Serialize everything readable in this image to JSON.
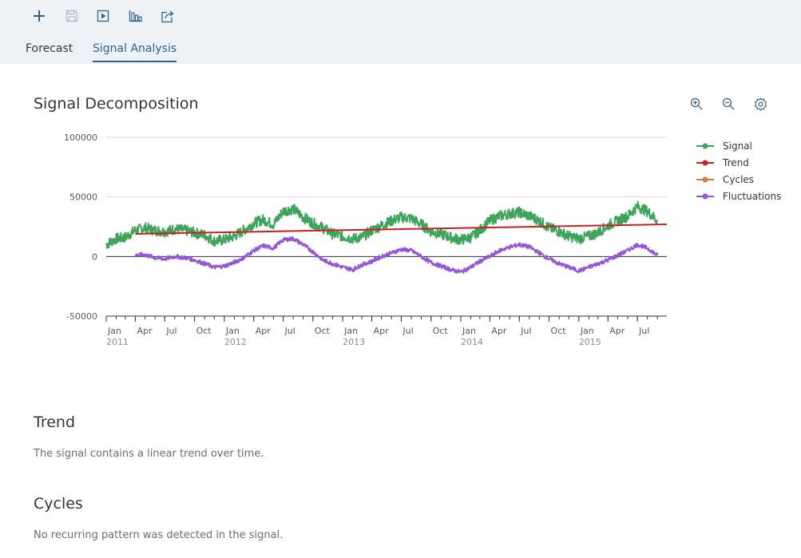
{
  "toolbar": {
    "buttons": [
      {
        "icon": "add-icon"
      },
      {
        "icon": "save-icon"
      },
      {
        "icon": "play-icon"
      },
      {
        "icon": "chart-icon"
      },
      {
        "icon": "share-icon"
      }
    ]
  },
  "tabs": [
    {
      "label": "Forecast",
      "active": false
    },
    {
      "label": "Signal Analysis",
      "active": true
    }
  ],
  "decomposition": {
    "title": "Signal Decomposition",
    "tools": [
      "zoom-in-icon",
      "zoom-out-icon",
      "settings-icon"
    ]
  },
  "chart_data": {
    "type": "line",
    "title": "Signal Decomposition",
    "xlabel": "",
    "ylabel": "",
    "ylim": [
      -50000,
      100000
    ],
    "y_ticks": [
      "100000",
      "50000",
      "0",
      "-50000"
    ],
    "x_range": [
      "2011-01-01",
      "2015-09-30"
    ],
    "x_ticks": [
      {
        "date": "2011-01-01",
        "label": "Jan",
        "year": "2011"
      },
      {
        "date": "2011-04-01",
        "label": "Apr"
      },
      {
        "date": "2011-07-01",
        "label": "Jul"
      },
      {
        "date": "2011-10-01",
        "label": "Oct"
      },
      {
        "date": "2012-01-01",
        "label": "Jan",
        "year": "2012"
      },
      {
        "date": "2012-04-01",
        "label": "Apr"
      },
      {
        "date": "2012-07-01",
        "label": "Jul"
      },
      {
        "date": "2012-10-01",
        "label": "Oct"
      },
      {
        "date": "2013-01-01",
        "label": "Jan",
        "year": "2013"
      },
      {
        "date": "2013-04-01",
        "label": "Apr"
      },
      {
        "date": "2013-07-01",
        "label": "Jul"
      },
      {
        "date": "2013-10-01",
        "label": "Oct"
      },
      {
        "date": "2014-01-01",
        "label": "Jan",
        "year": "2014"
      },
      {
        "date": "2014-04-01",
        "label": "Apr"
      },
      {
        "date": "2014-07-01",
        "label": "Jul"
      },
      {
        "date": "2014-10-01",
        "label": "Oct"
      },
      {
        "date": "2015-01-01",
        "label": "Jan",
        "year": "2015"
      },
      {
        "date": "2015-04-01",
        "label": "Apr"
      },
      {
        "date": "2015-07-01",
        "label": "Jul"
      }
    ],
    "legend_position": "right",
    "grid": true,
    "series": [
      {
        "name": "Signal",
        "color": "#3fa45b",
        "points": [
          [
            "2011-01-01",
            10000
          ],
          [
            "2011-02-01",
            15000
          ],
          [
            "2011-03-01",
            16000
          ],
          [
            "2011-04-01",
            22000
          ],
          [
            "2011-05-01",
            24000
          ],
          [
            "2011-06-01",
            22000
          ],
          [
            "2011-07-01",
            21000
          ],
          [
            "2011-08-01",
            23000
          ],
          [
            "2011-09-01",
            22000
          ],
          [
            "2011-10-01",
            20000
          ],
          [
            "2011-11-01",
            18000
          ],
          [
            "2011-12-01",
            13000
          ],
          [
            "2012-01-01",
            14000
          ],
          [
            "2012-02-01",
            17000
          ],
          [
            "2012-03-01",
            22000
          ],
          [
            "2012-04-01",
            28000
          ],
          [
            "2012-05-01",
            31000
          ],
          [
            "2012-06-01",
            27000
          ],
          [
            "2012-07-01",
            38000
          ],
          [
            "2012-08-01",
            40000
          ],
          [
            "2012-09-01",
            33000
          ],
          [
            "2012-10-01",
            28000
          ],
          [
            "2012-11-01",
            24000
          ],
          [
            "2012-12-01",
            19000
          ],
          [
            "2013-01-01",
            17000
          ],
          [
            "2013-02-01",
            15000
          ],
          [
            "2013-03-01",
            16000
          ],
          [
            "2013-04-01",
            22000
          ],
          [
            "2013-05-01",
            26000
          ],
          [
            "2013-06-01",
            30000
          ],
          [
            "2013-07-01",
            33000
          ],
          [
            "2013-08-01",
            32000
          ],
          [
            "2013-09-01",
            27000
          ],
          [
            "2013-10-01",
            21000
          ],
          [
            "2013-11-01",
            19000
          ],
          [
            "2013-12-01",
            16000
          ],
          [
            "2014-01-01",
            14000
          ],
          [
            "2014-02-01",
            16000
          ],
          [
            "2014-03-01",
            22000
          ],
          [
            "2014-04-01",
            30000
          ],
          [
            "2014-05-01",
            34000
          ],
          [
            "2014-06-01",
            36000
          ],
          [
            "2014-07-01",
            37000
          ],
          [
            "2014-08-01",
            34000
          ],
          [
            "2014-09-01",
            30000
          ],
          [
            "2014-10-01",
            24000
          ],
          [
            "2014-11-01",
            21000
          ],
          [
            "2014-12-01",
            17000
          ],
          [
            "2015-01-01",
            15000
          ],
          [
            "2015-02-01",
            17000
          ],
          [
            "2015-03-01",
            20000
          ],
          [
            "2015-04-01",
            26000
          ],
          [
            "2015-05-01",
            30000
          ],
          [
            "2015-06-01",
            34000
          ],
          [
            "2015-07-01",
            42000
          ],
          [
            "2015-08-01",
            38000
          ],
          [
            "2015-09-01",
            30000
          ]
        ]
      },
      {
        "name": "Trend",
        "color": "#cc1f1f",
        "points": [
          [
            "2011-04-01",
            19000
          ],
          [
            "2015-09-30",
            27000
          ]
        ]
      },
      {
        "name": "Cycles",
        "color": "#e8743b",
        "points": []
      },
      {
        "name": "Fluctuations",
        "color": "#9256d6",
        "points": [
          [
            "2011-04-01",
            1000
          ],
          [
            "2011-05-01",
            1500
          ],
          [
            "2011-06-01",
            -1000
          ],
          [
            "2011-07-01",
            -2000
          ],
          [
            "2011-08-01",
            0
          ],
          [
            "2011-09-01",
            -1000
          ],
          [
            "2011-10-01",
            -3000
          ],
          [
            "2011-11-01",
            -6000
          ],
          [
            "2011-12-01",
            -9000
          ],
          [
            "2012-01-01",
            -8000
          ],
          [
            "2012-02-01",
            -5000
          ],
          [
            "2012-03-01",
            -1000
          ],
          [
            "2012-04-01",
            5000
          ],
          [
            "2012-05-01",
            9000
          ],
          [
            "2012-06-01",
            7000
          ],
          [
            "2012-07-01",
            14000
          ],
          [
            "2012-08-01",
            15000
          ],
          [
            "2012-09-01",
            10000
          ],
          [
            "2012-10-01",
            4000
          ],
          [
            "2012-11-01",
            -3000
          ],
          [
            "2012-12-01",
            -6000
          ],
          [
            "2013-01-01",
            -9000
          ],
          [
            "2013-02-01",
            -11000
          ],
          [
            "2013-03-01",
            -7000
          ],
          [
            "2013-04-01",
            -4000
          ],
          [
            "2013-05-01",
            0
          ],
          [
            "2013-06-01",
            3000
          ],
          [
            "2013-07-01",
            6000
          ],
          [
            "2013-08-01",
            5000
          ],
          [
            "2013-09-01",
            0
          ],
          [
            "2013-10-01",
            -5000
          ],
          [
            "2013-11-01",
            -8000
          ],
          [
            "2013-12-01",
            -11000
          ],
          [
            "2014-01-01",
            -13000
          ],
          [
            "2014-02-01",
            -9000
          ],
          [
            "2014-03-01",
            -4000
          ],
          [
            "2014-04-01",
            0
          ],
          [
            "2014-05-01",
            5000
          ],
          [
            "2014-06-01",
            8000
          ],
          [
            "2014-07-01",
            10000
          ],
          [
            "2014-08-01",
            8000
          ],
          [
            "2014-09-01",
            3000
          ],
          [
            "2014-10-01",
            -2000
          ],
          [
            "2014-11-01",
            -6000
          ],
          [
            "2014-12-01",
            -9000
          ],
          [
            "2015-01-01",
            -12000
          ],
          [
            "2015-02-01",
            -9000
          ],
          [
            "2015-03-01",
            -6000
          ],
          [
            "2015-04-01",
            -3000
          ],
          [
            "2015-05-01",
            1000
          ],
          [
            "2015-06-01",
            5000
          ],
          [
            "2015-07-01",
            10000
          ],
          [
            "2015-08-01",
            7000
          ],
          [
            "2015-09-01",
            1000
          ]
        ]
      }
    ]
  },
  "trend": {
    "title": "Trend",
    "text": "The signal contains a linear trend over time."
  },
  "cycles": {
    "title": "Cycles",
    "text": "No recurring pattern was detected in the signal."
  }
}
